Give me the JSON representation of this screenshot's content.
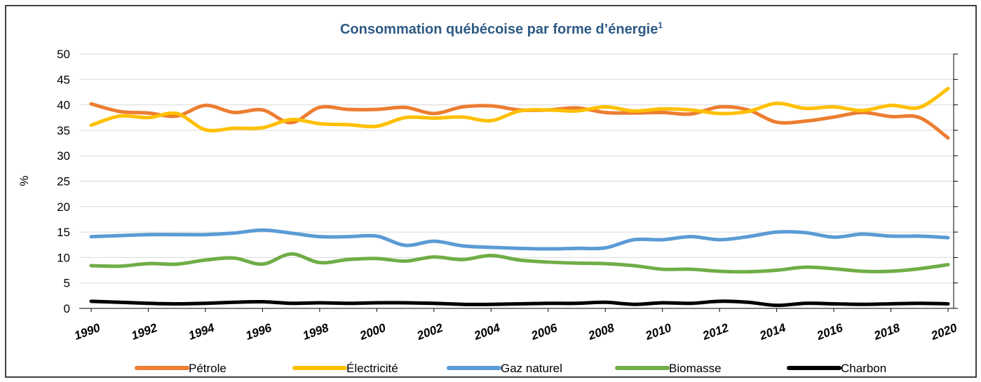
{
  "chart_data": {
    "type": "line",
    "title": "Consommation québécoise par forme d’énergie",
    "title_note": "1",
    "ylabel": "%",
    "x": [
      1990,
      1991,
      1992,
      1993,
      1994,
      1995,
      1996,
      1997,
      1998,
      1999,
      2000,
      2001,
      2002,
      2003,
      2004,
      2005,
      2006,
      2007,
      2008,
      2009,
      2010,
      2011,
      2012,
      2013,
      2014,
      2015,
      2016,
      2017,
      2018,
      2019,
      2020
    ],
    "xlim": [
      1990,
      2020
    ],
    "xticks": [
      1990,
      1992,
      1994,
      1996,
      1998,
      2000,
      2002,
      2004,
      2006,
      2008,
      2010,
      2012,
      2014,
      2016,
      2018,
      2020
    ],
    "ylim": [
      0,
      50
    ],
    "yticks": [
      0,
      5,
      10,
      15,
      20,
      25,
      30,
      35,
      40,
      45,
      50
    ],
    "grid": true,
    "legend": "bottom",
    "series": [
      {
        "name": "Pétrole",
        "color": "#ed7d31",
        "values": [
          40.2,
          38.7,
          38.4,
          37.8,
          39.9,
          38.5,
          39.0,
          36.5,
          39.5,
          39.1,
          39.1,
          39.5,
          38.3,
          39.6,
          39.8,
          39.0,
          39.0,
          39.4,
          38.5,
          38.4,
          38.5,
          38.2,
          39.6,
          39.0,
          36.6,
          36.8,
          37.6,
          38.5,
          37.7,
          37.5,
          33.5
        ]
      },
      {
        "name": "Électricité",
        "color": "#ffc000",
        "values": [
          36.0,
          37.8,
          37.5,
          38.3,
          35.1,
          35.4,
          35.5,
          37.1,
          36.3,
          36.1,
          35.8,
          37.5,
          37.4,
          37.6,
          36.9,
          38.8,
          39.0,
          38.8,
          39.6,
          38.8,
          39.2,
          39.0,
          38.3,
          38.7,
          40.3,
          39.3,
          39.6,
          38.9,
          39.9,
          39.5,
          43.2
        ]
      },
      {
        "name": "Gaz naturel",
        "color": "#5b9bd5",
        "values": [
          14.1,
          14.3,
          14.5,
          14.5,
          14.5,
          14.8,
          15.4,
          14.8,
          14.1,
          14.1,
          14.2,
          12.4,
          13.2,
          12.3,
          12.0,
          11.8,
          11.7,
          11.8,
          11.9,
          13.5,
          13.5,
          14.1,
          13.5,
          14.1,
          15.0,
          14.9,
          14.0,
          14.6,
          14.2,
          14.2,
          13.9
        ]
      },
      {
        "name": "Biomasse",
        "color": "#70ad47",
        "values": [
          8.4,
          8.3,
          8.8,
          8.7,
          9.5,
          9.9,
          8.7,
          10.7,
          9.0,
          9.6,
          9.8,
          9.3,
          10.1,
          9.6,
          10.4,
          9.5,
          9.1,
          8.9,
          8.8,
          8.4,
          7.7,
          7.7,
          7.3,
          7.2,
          7.5,
          8.1,
          7.8,
          7.3,
          7.3,
          7.8,
          8.6
        ]
      },
      {
        "name": "Charbon",
        "color": "#000000",
        "values": [
          1.4,
          1.2,
          1.0,
          0.9,
          1.0,
          1.2,
          1.3,
          1.0,
          1.1,
          1.0,
          1.1,
          1.1,
          1.0,
          0.8,
          0.8,
          0.9,
          1.0,
          1.0,
          1.2,
          0.8,
          1.1,
          1.0,
          1.4,
          1.2,
          0.6,
          1.0,
          0.9,
          0.8,
          0.9,
          1.0,
          0.9
        ]
      }
    ]
  }
}
